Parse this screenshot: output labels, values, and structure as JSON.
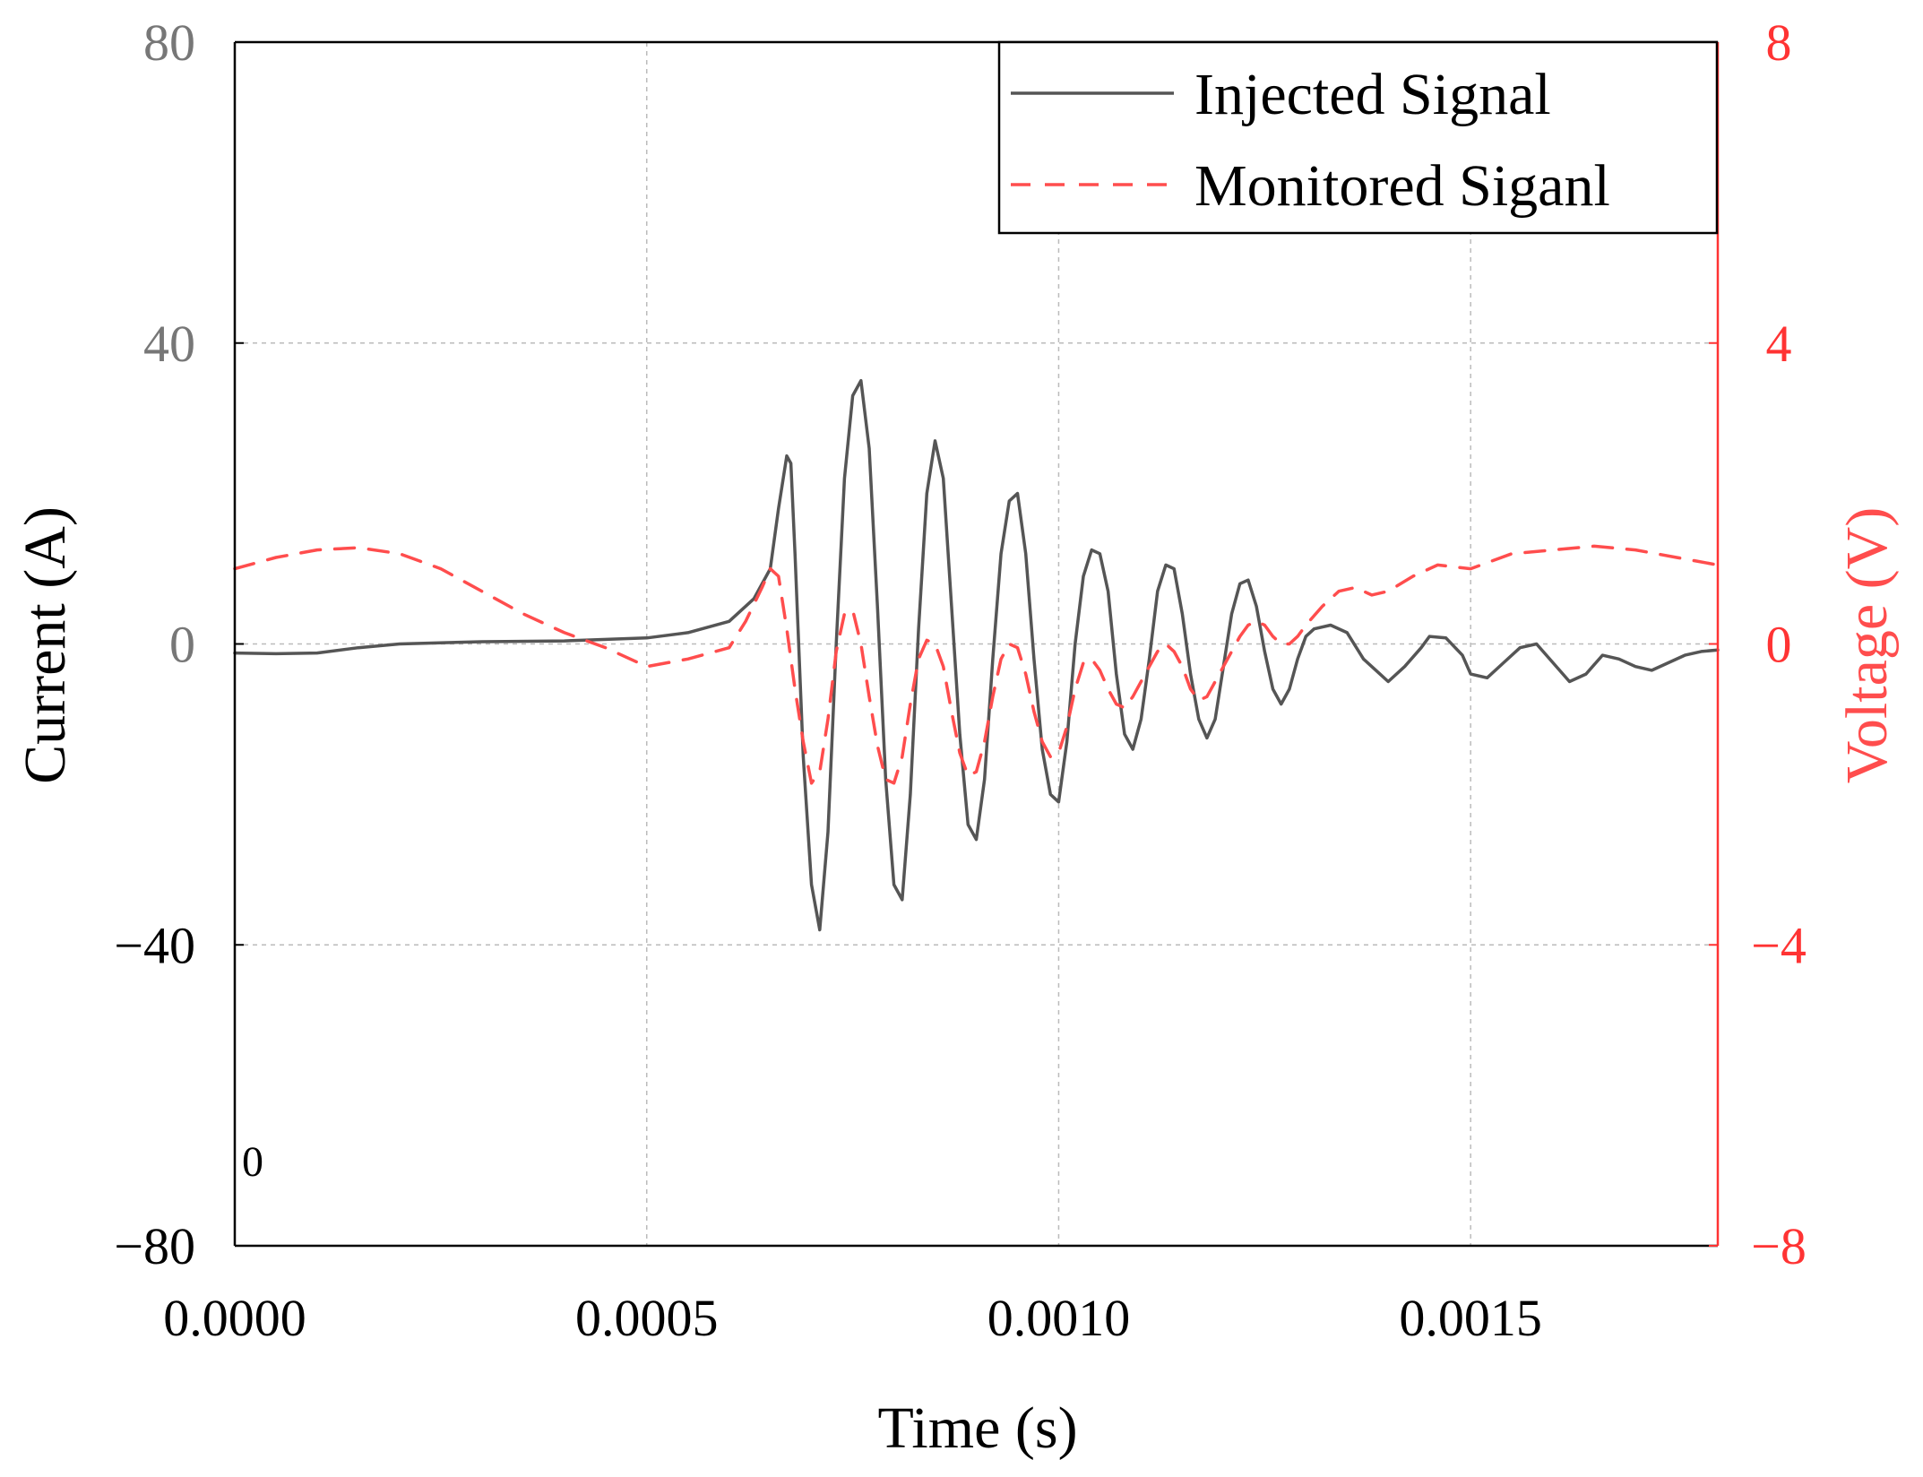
{
  "chart_data": {
    "type": "line",
    "title": "",
    "xlabel": "Time (s)",
    "ylabel_left": "Current (A)",
    "ylabel_right": "Voltage (V)",
    "xlim": [
      0,
      0.0018
    ],
    "ylim_left": [
      -80,
      80
    ],
    "ylim_right": [
      -8,
      8
    ],
    "x_ticks": [
      "0.0000",
      "0.0005",
      "0.0010",
      "0.0015"
    ],
    "x_tick_values": [
      0,
      0.0005,
      0.001,
      0.0015
    ],
    "y_left_ticks": [
      "80",
      "40",
      "0",
      "−40",
      "−80"
    ],
    "y_left_tick_values": [
      80,
      40,
      0,
      -40,
      -80
    ],
    "y_right_ticks": [
      "8",
      "4",
      "0",
      "−4",
      "−8"
    ],
    "y_right_tick_values": [
      8,
      4,
      0,
      -4,
      -8
    ],
    "grid": true,
    "legend_position": "top-right",
    "annotation": "0",
    "colors": {
      "injected": "#555555",
      "monitored": "#ff4d4d",
      "right_axis": "#ff3333",
      "left_tick_upper": "#777777",
      "left_tick_lower": "#000000",
      "grid": "#bbbbbb"
    },
    "series": [
      {
        "name": "Injected Signal",
        "axis": "left",
        "style": "solid",
        "x": [
          0,
          5e-05,
          0.0001,
          0.00015,
          0.0002,
          0.0003,
          0.0004,
          0.0005,
          0.00055,
          0.0006,
          0.00063,
          0.00065,
          0.00066,
          0.00067,
          0.000675,
          0.00068,
          0.00069,
          0.0007,
          0.00071,
          0.00072,
          0.00073,
          0.00074,
          0.00075,
          0.00076,
          0.00077,
          0.00078,
          0.00079,
          0.0008,
          0.00081,
          0.00082,
          0.00083,
          0.00084,
          0.00085,
          0.00086,
          0.00087,
          0.00088,
          0.00089,
          0.0009,
          0.00091,
          0.00092,
          0.00093,
          0.00094,
          0.00095,
          0.00096,
          0.00097,
          0.00098,
          0.00099,
          0.001,
          0.00101,
          0.00102,
          0.00103,
          0.00104,
          0.00105,
          0.00106,
          0.00107,
          0.00108,
          0.00109,
          0.0011,
          0.00111,
          0.00112,
          0.00113,
          0.00114,
          0.00115,
          0.00116,
          0.00117,
          0.00118,
          0.00119,
          0.0012,
          0.00121,
          0.00122,
          0.00123,
          0.00124,
          0.00125,
          0.00126,
          0.00127,
          0.00128,
          0.00129,
          0.0013,
          0.00131,
          0.00133,
          0.00135,
          0.00137,
          0.00139,
          0.0014,
          0.00142,
          0.00144,
          0.00145,
          0.00147,
          0.00149,
          0.0015,
          0.00152,
          0.00154,
          0.00156,
          0.00158,
          0.0016,
          0.00162,
          0.00164,
          0.00166,
          0.00168,
          0.0017,
          0.00172,
          0.00174,
          0.00176,
          0.00178,
          0.0018
        ],
        "values": [
          -1.2,
          -1.3,
          -1.2,
          -0.5,
          0,
          0.3,
          0.4,
          0.8,
          1.5,
          3,
          6,
          10,
          18,
          25,
          24,
          12,
          -15,
          -32,
          -38,
          -25,
          0,
          22,
          33,
          35,
          26,
          5,
          -18,
          -32,
          -34,
          -20,
          2,
          20,
          27,
          22,
          5,
          -12,
          -24,
          -26,
          -18,
          -2,
          12,
          19,
          20,
          12,
          -2,
          -14,
          -20,
          -21,
          -13,
          0,
          9,
          12.5,
          12,
          7,
          -4,
          -12,
          -14,
          -10,
          -2,
          7,
          10.5,
          10,
          4,
          -4,
          -10,
          -12.5,
          -10,
          -3,
          4,
          8,
          8.5,
          5,
          -1,
          -6,
          -8,
          -6,
          -2,
          1,
          2,
          2.5,
          1.5,
          -2,
          -4,
          -5,
          -3,
          -0.5,
          1,
          0.8,
          -1.5,
          -4,
          -4.5,
          -2.5,
          -0.5,
          0,
          -2.5,
          -5,
          -4,
          -1.5,
          -2,
          -3,
          -3.5,
          -2.5,
          -1.5,
          -1,
          -0.8
        ]
      },
      {
        "name": "Monitored Siganl",
        "axis": "right",
        "style": "dashed",
        "x": [
          0,
          5e-05,
          0.0001,
          0.00015,
          0.0002,
          0.00025,
          0.0003,
          0.00035,
          0.0004,
          0.00045,
          0.0005,
          0.00055,
          0.0006,
          0.00062,
          0.00064,
          0.00065,
          0.00066,
          0.00067,
          0.00068,
          0.00069,
          0.0007,
          0.00071,
          0.00072,
          0.00073,
          0.00074,
          0.00075,
          0.00076,
          0.00077,
          0.00078,
          0.00079,
          0.0008,
          0.00081,
          0.00082,
          0.00083,
          0.00084,
          0.00085,
          0.00086,
          0.00087,
          0.00088,
          0.00089,
          0.0009,
          0.00091,
          0.00092,
          0.00093,
          0.00094,
          0.00095,
          0.00096,
          0.00097,
          0.00098,
          0.00099,
          0.001,
          0.00101,
          0.00102,
          0.00103,
          0.00104,
          0.00105,
          0.00106,
          0.00107,
          0.00108,
          0.00109,
          0.0011,
          0.00111,
          0.00112,
          0.00113,
          0.00114,
          0.00115,
          0.00116,
          0.00117,
          0.00118,
          0.00119,
          0.0012,
          0.00121,
          0.00122,
          0.00123,
          0.00124,
          0.00125,
          0.00126,
          0.00127,
          0.00128,
          0.00129,
          0.0013,
          0.00132,
          0.00134,
          0.00136,
          0.00138,
          0.0014,
          0.00143,
          0.00146,
          0.0015,
          0.00155,
          0.0016,
          0.00165,
          0.0017,
          0.00175,
          0.0018
        ],
        "values": [
          1,
          1.15,
          1.25,
          1.28,
          1.2,
          1,
          0.7,
          0.4,
          0.15,
          -0.05,
          -0.3,
          -0.2,
          -0.05,
          0.3,
          0.75,
          1,
          0.9,
          0.2,
          -0.6,
          -1.3,
          -1.85,
          -1.7,
          -1,
          -0.1,
          0.4,
          0.45,
          0,
          -0.7,
          -1.35,
          -1.8,
          -1.85,
          -1.5,
          -0.8,
          -0.2,
          0.05,
          0,
          -0.3,
          -0.9,
          -1.45,
          -1.75,
          -1.7,
          -1.3,
          -0.7,
          -0.2,
          0,
          -0.05,
          -0.4,
          -0.9,
          -1.3,
          -1.5,
          -1.45,
          -1.1,
          -0.6,
          -0.25,
          -0.2,
          -0.35,
          -0.6,
          -0.8,
          -0.85,
          -0.7,
          -0.5,
          -0.3,
          -0.1,
          0,
          -0.1,
          -0.3,
          -0.6,
          -0.75,
          -0.7,
          -0.5,
          -0.3,
          -0.1,
          0.1,
          0.25,
          0.3,
          0.25,
          0.1,
          0,
          0,
          0.1,
          0.25,
          0.5,
          0.7,
          0.75,
          0.65,
          0.7,
          0.9,
          1.05,
          1.0,
          1.2,
          1.25,
          1.3,
          1.25,
          1.15,
          1.05
        ]
      }
    ]
  }
}
